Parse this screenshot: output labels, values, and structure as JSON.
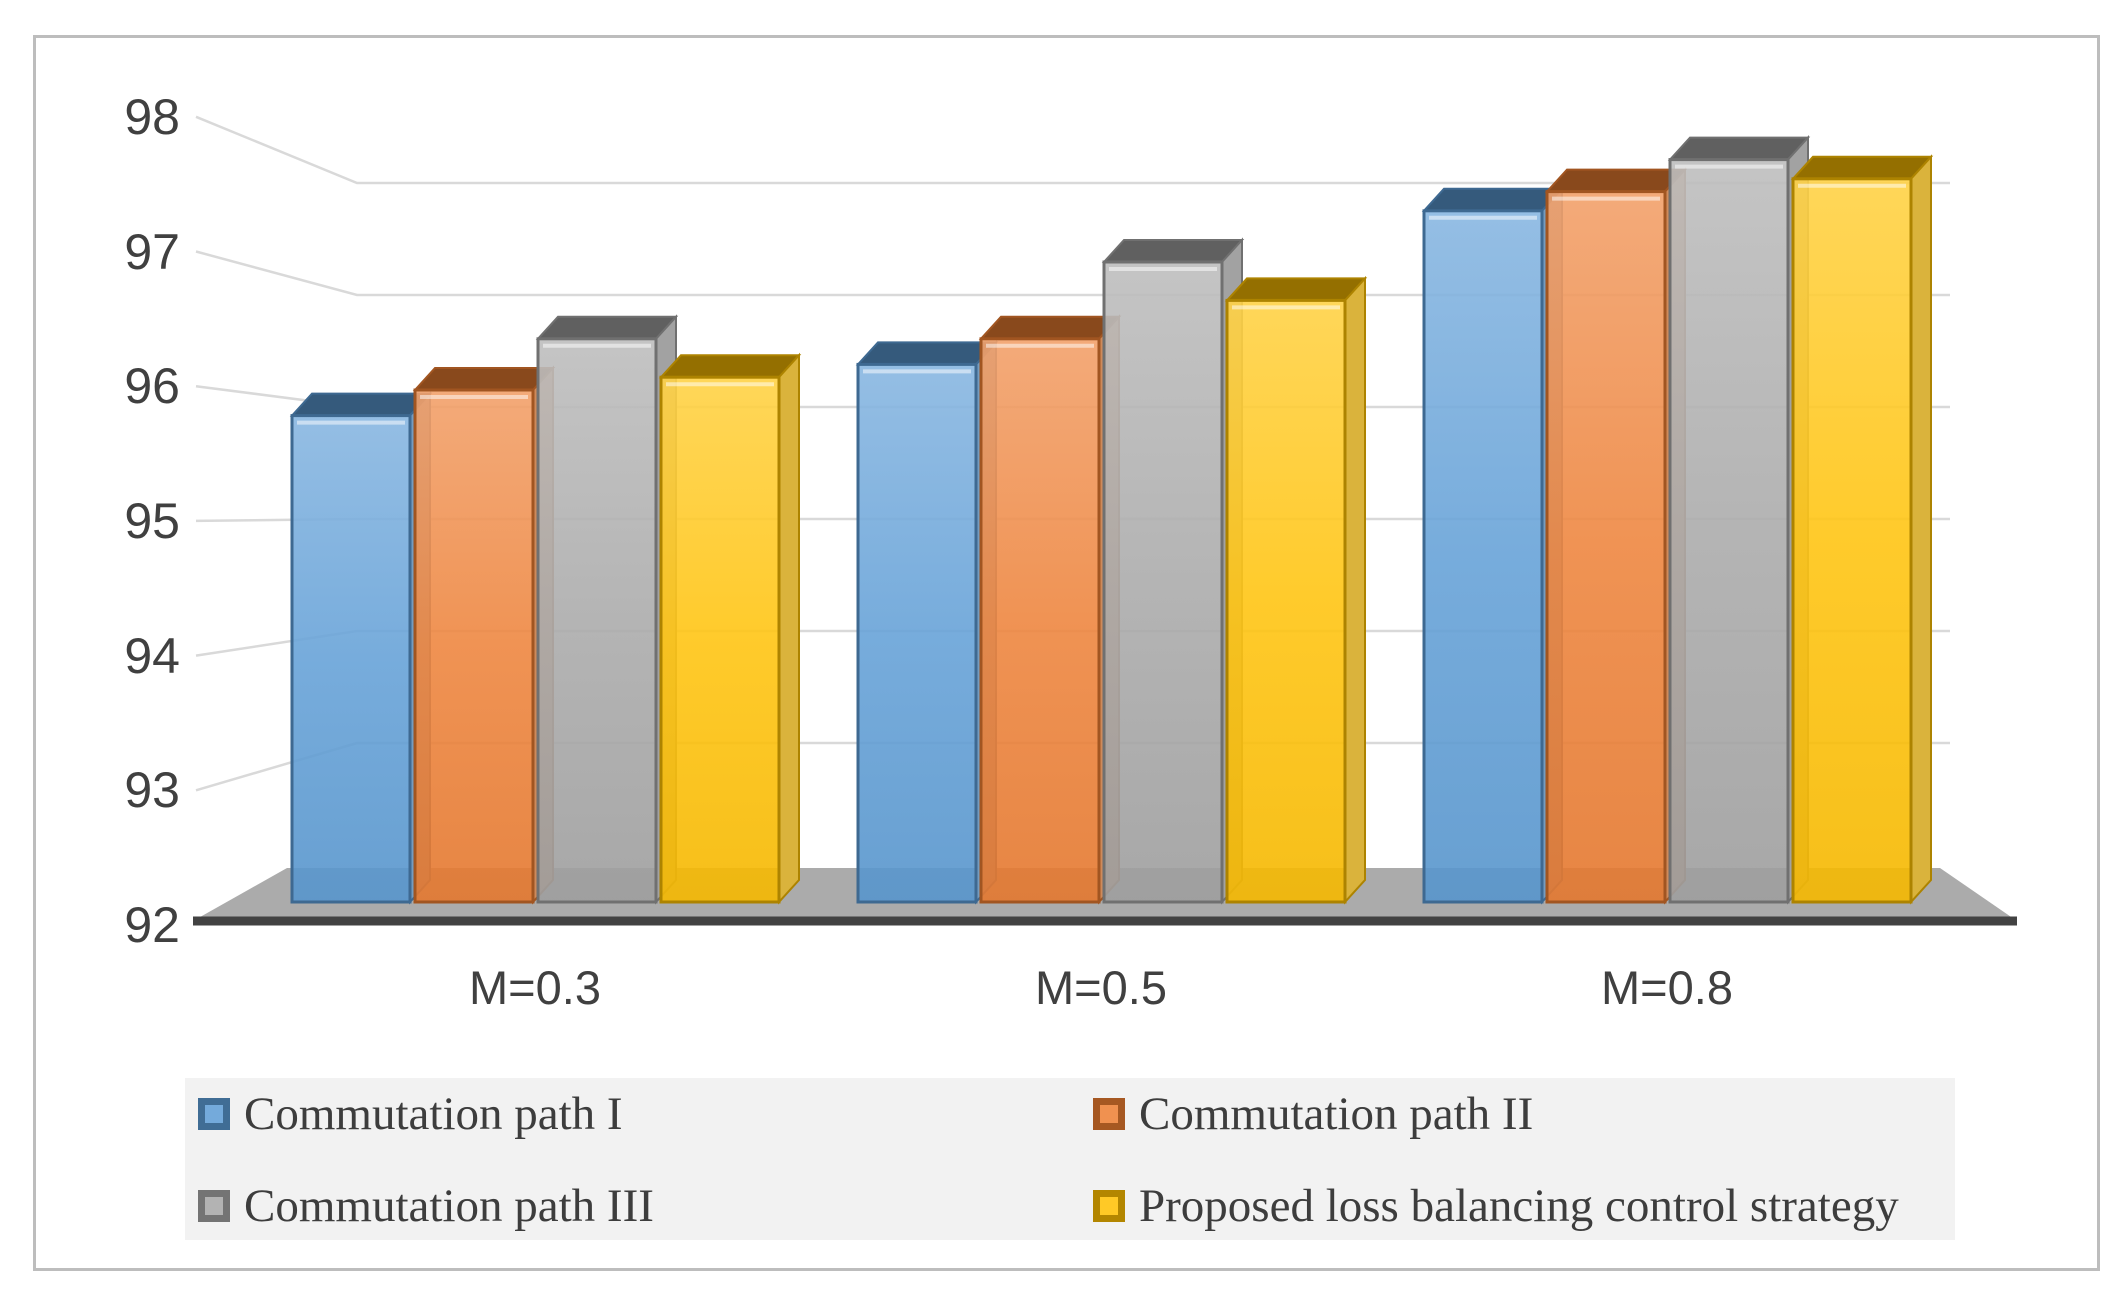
{
  "figure": {
    "background_color": "#ffffff",
    "frame_border_color": "#bdbdbd",
    "floor_color": "#ababab",
    "floor_edge_color": "#424242",
    "gridline_color": "#d9d9d9",
    "axis_text_color": "#404040",
    "legend_background": "#f2f2f2",
    "legend_text_color": "#3d3d3d"
  },
  "chart_data": {
    "type": "bar",
    "style": "3d-clustered-column",
    "title": "",
    "xlabel": "",
    "ylabel": "",
    "categories": [
      "M=0.3",
      "M=0.5",
      "M=0.8"
    ],
    "series": [
      {
        "name": "Commutation path I",
        "color": "#5B9BD5",
        "values": [
          95.8,
          96.2,
          97.4
        ]
      },
      {
        "name": "Commutation path II",
        "color": "#ED7D31",
        "values": [
          96.0,
          96.4,
          97.55
        ]
      },
      {
        "name": "Commutation path III",
        "color": "#A5A5A5",
        "values": [
          96.4,
          97.0,
          97.8
        ]
      },
      {
        "name": "Proposed loss balancing control strategy",
        "color": "#FFC000",
        "values": [
          96.1,
          96.7,
          97.65
        ]
      }
    ],
    "ylim": [
      92,
      98
    ],
    "y_ticks": [
      98,
      97,
      96,
      95,
      94,
      93,
      92
    ],
    "grid": true,
    "legend_position": "bottom"
  }
}
